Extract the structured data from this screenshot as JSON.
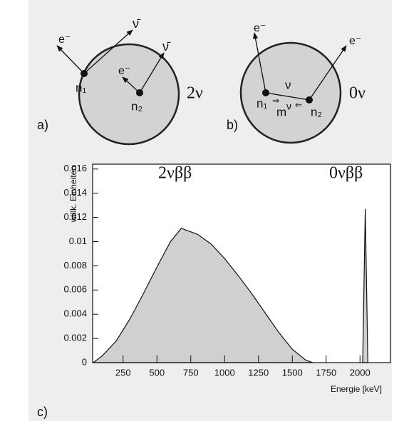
{
  "diagrams": [
    {
      "panel": "a)",
      "process": "2ν",
      "labels": [
        "e⁻",
        "ν̄",
        "e⁻",
        "ν̄",
        "n₁",
        "n₂"
      ]
    },
    {
      "panel": "b)",
      "process": "0ν",
      "labels": [
        "e⁻",
        "e⁻",
        "ν",
        "n₁",
        "n₂",
        "m",
        "ν"
      ]
    }
  ],
  "chart_data": {
    "type": "area",
    "panel": "c)",
    "ylabel": "willk. Einheiten",
    "xlabel": "Energie [keV]",
    "xlim": [
      25,
      2225
    ],
    "ylim": [
      0,
      0.0164
    ],
    "xticks": [
      250,
      500,
      750,
      1000,
      1250,
      1500,
      1750,
      2000
    ],
    "yticks": [
      0,
      0.002,
      0.004,
      0.006,
      0.008,
      0.01,
      0.012,
      0.014,
      0.016
    ],
    "series": [
      {
        "name": "2νββ",
        "color": "#d0d0d0",
        "x": [
          30,
          100,
          200,
          300,
          400,
          500,
          600,
          680,
          800,
          900,
          1000,
          1100,
          1200,
          1300,
          1400,
          1500,
          1600,
          1650
        ],
        "values": [
          0,
          0.0006,
          0.0018,
          0.0036,
          0.0057,
          0.0079,
          0.01,
          0.0111,
          0.0106,
          0.0098,
          0.0086,
          0.0072,
          0.0057,
          0.0041,
          0.0025,
          0.0011,
          0.0002,
          0
        ]
      },
      {
        "name": "0νββ",
        "color": "#d0d0d0",
        "x": [
          2020,
          2039,
          2058
        ],
        "values": [
          0,
          0.0127,
          0
        ]
      }
    ]
  }
}
